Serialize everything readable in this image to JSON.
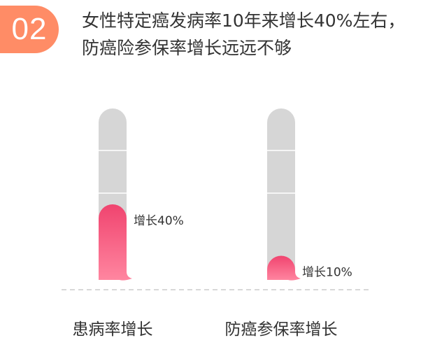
{
  "header": {
    "number": "02",
    "headline": "女性特定癌发病率10年来增长40%左右，防癌险参保率增长远远不够"
  },
  "colors": {
    "badge": "#ff8c66",
    "tube_empty": "#d6d6d6",
    "fill_top": "#f0446f",
    "fill_bottom": "#ff86a0",
    "baseline": "#cccccc"
  },
  "chart_data": {
    "type": "bar",
    "style": "thermometer",
    "categories": [
      "患病率增长",
      "防癌参保率增长"
    ],
    "values": [
      40,
      10
    ],
    "data_labels": [
      "增长40%",
      "增长10%"
    ],
    "ylim": [
      0,
      100
    ],
    "unit": "%",
    "grid": false
  }
}
